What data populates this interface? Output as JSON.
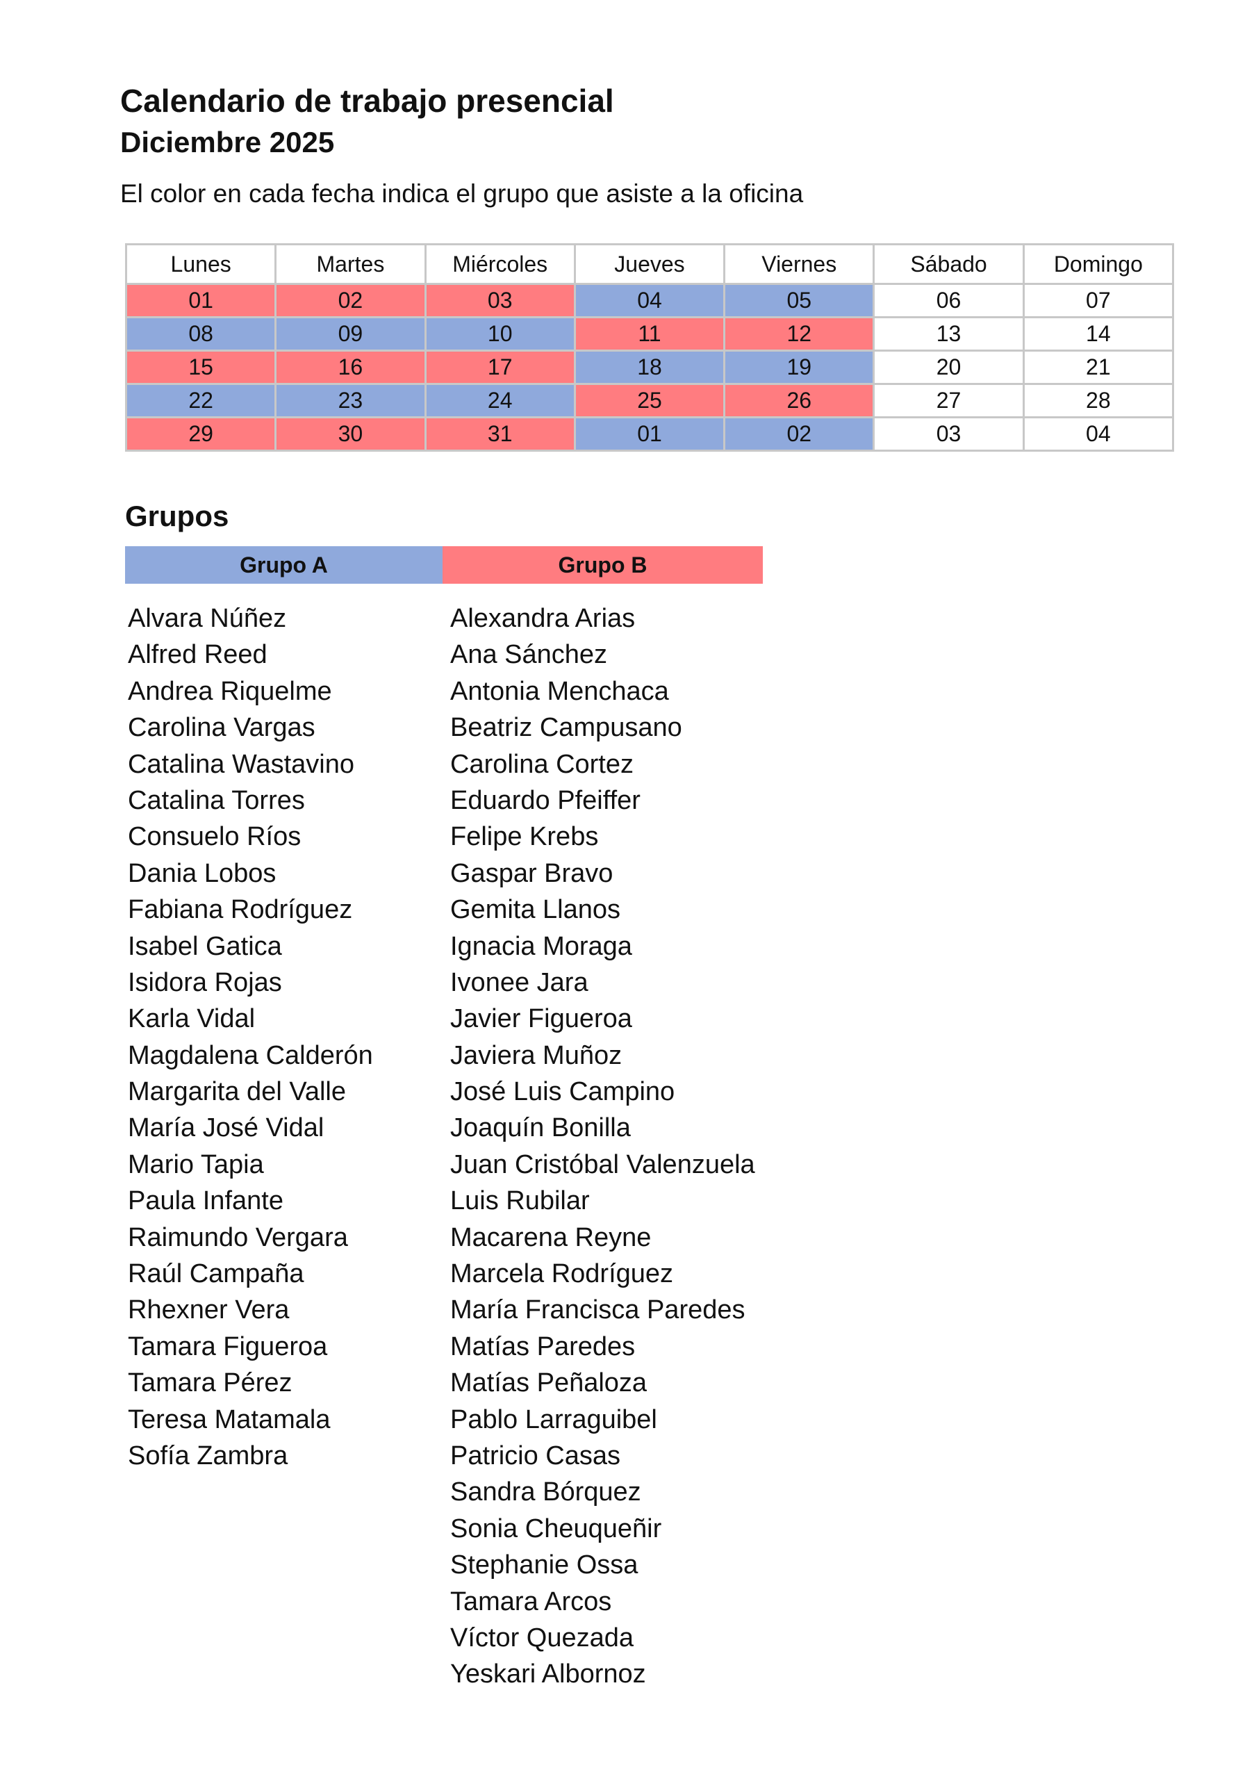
{
  "header": {
    "title": "Calendario de trabajo presencial",
    "subtitle": "Diciembre 2025",
    "description": "El color en cada fecha indica el grupo que asiste  a la oficina"
  },
  "colors": {
    "grupo_a": "#8fa9dc",
    "grupo_b": "#ff7c80"
  },
  "calendar": {
    "days": [
      "Lunes",
      "Martes",
      "Miércoles",
      "Jueves",
      "Viernes",
      "Sábado",
      "Domingo"
    ],
    "weeks": [
      [
        {
          "d": "01",
          "g": "B"
        },
        {
          "d": "02",
          "g": "B"
        },
        {
          "d": "03",
          "g": "B"
        },
        {
          "d": "04",
          "g": "A"
        },
        {
          "d": "05",
          "g": "A"
        },
        {
          "d": "06",
          "g": ""
        },
        {
          "d": "07",
          "g": ""
        }
      ],
      [
        {
          "d": "08",
          "g": "A"
        },
        {
          "d": "09",
          "g": "A"
        },
        {
          "d": "10",
          "g": "A"
        },
        {
          "d": "11",
          "g": "B"
        },
        {
          "d": "12",
          "g": "B"
        },
        {
          "d": "13",
          "g": ""
        },
        {
          "d": "14",
          "g": ""
        }
      ],
      [
        {
          "d": "15",
          "g": "B"
        },
        {
          "d": "16",
          "g": "B"
        },
        {
          "d": "17",
          "g": "B"
        },
        {
          "d": "18",
          "g": "A"
        },
        {
          "d": "19",
          "g": "A"
        },
        {
          "d": "20",
          "g": ""
        },
        {
          "d": "21",
          "g": ""
        }
      ],
      [
        {
          "d": "22",
          "g": "A"
        },
        {
          "d": "23",
          "g": "A"
        },
        {
          "d": "24",
          "g": "A"
        },
        {
          "d": "25",
          "g": "B"
        },
        {
          "d": "26",
          "g": "B"
        },
        {
          "d": "27",
          "g": ""
        },
        {
          "d": "28",
          "g": ""
        }
      ],
      [
        {
          "d": "29",
          "g": "B"
        },
        {
          "d": "30",
          "g": "B"
        },
        {
          "d": "31",
          "g": "B"
        },
        {
          "d": "01",
          "g": "A"
        },
        {
          "d": "02",
          "g": "A"
        },
        {
          "d": "03",
          "g": ""
        },
        {
          "d": "04",
          "g": ""
        }
      ]
    ]
  },
  "groups": {
    "title": "Grupos",
    "group_a": {
      "label": "Grupo A",
      "members": [
        "Alvara Núñez",
        "Alfred Reed",
        "Andrea Riquelme",
        "Carolina Vargas",
        "Catalina Wastavino",
        "Catalina Torres",
        "Consuelo Ríos",
        "Dania Lobos",
        "Fabiana Rodríguez",
        "Isabel Gatica",
        "Isidora Rojas",
        "Karla Vidal",
        "Magdalena Calderón",
        "Margarita del Valle",
        "María José Vidal",
        "Mario Tapia",
        "Paula Infante",
        "Raimundo Vergara",
        "Raúl Campaña",
        "Rhexner Vera",
        "Tamara Figueroa",
        "Tamara Pérez",
        "Teresa Matamala",
        "Sofía Zambra"
      ]
    },
    "group_b": {
      "label": "Grupo B",
      "members": [
        "Alexandra Arias",
        "Ana Sánchez",
        "Antonia Menchaca",
        "Beatriz Campusano",
        "Carolina Cortez",
        "Eduardo Pfeiffer",
        "Felipe Krebs",
        "Gaspar Bravo",
        "Gemita Llanos",
        "Ignacia Moraga",
        "Ivonee Jara",
        "Javier Figueroa",
        "Javiera Muñoz",
        "José Luis Campino",
        "Joaquín Bonilla",
        "Juan Cristóbal Valenzuela",
        "Luis Rubilar",
        "Macarena Reyne",
        "Marcela Rodríguez",
        "María Francisca Paredes",
        "Matías Paredes",
        "Matías Peñaloza",
        "Pablo Larraguibel",
        "Patricio Casas",
        "Sandra Bórquez",
        "Sonia Cheuqueñir",
        "Stephanie Ossa",
        "Tamara Arcos",
        "Víctor Quezada",
        "Yeskari Albornoz"
      ]
    }
  }
}
